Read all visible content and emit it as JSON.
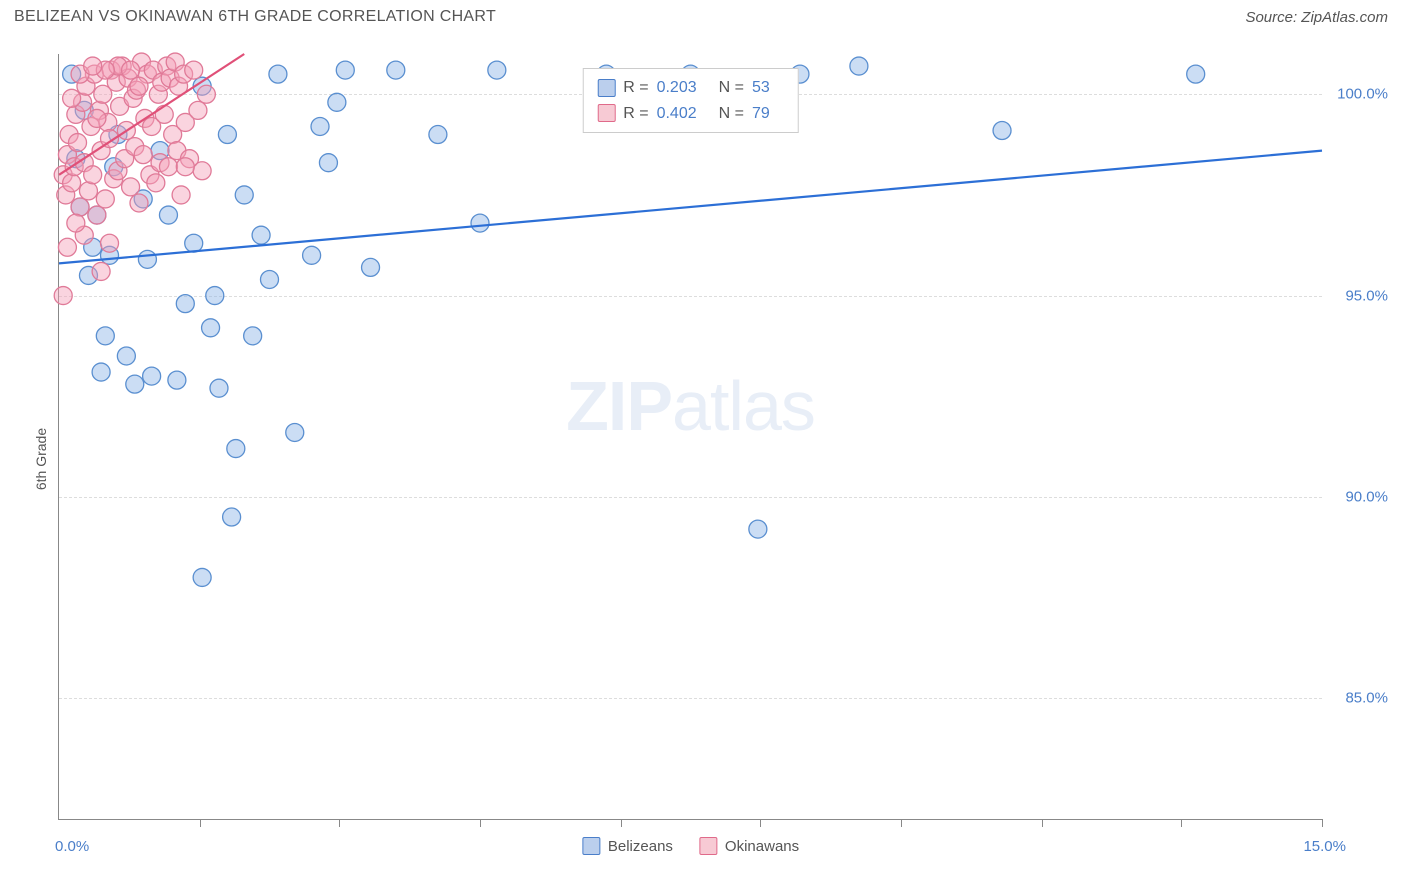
{
  "title": "BELIZEAN VS OKINAWAN 6TH GRADE CORRELATION CHART",
  "source": "Source: ZipAtlas.com",
  "ylabel": "6th Grade",
  "watermark_bold": "ZIP",
  "watermark_light": "atlas",
  "chart": {
    "type": "scatter",
    "xlim": [
      0,
      15
    ],
    "ylim": [
      82,
      101
    ],
    "x_axis_labels": [
      {
        "pos": 0,
        "text": "0.0%"
      },
      {
        "pos": 15,
        "text": "15.0%"
      }
    ],
    "x_ticks": [
      1.67,
      3.33,
      5.0,
      6.67,
      8.33,
      10.0,
      11.67,
      13.33,
      15.0
    ],
    "y_gridlines": [
      85,
      90,
      95,
      100
    ],
    "y_tick_labels": [
      "85.0%",
      "90.0%",
      "95.0%",
      "100.0%"
    ],
    "background_color": "#ffffff",
    "grid_color": "#dddddd",
    "series": [
      {
        "name": "Belizeans",
        "color_fill": "rgba(140,180,230,0.45)",
        "color_stroke": "#5a8fd0",
        "marker_radius": 9,
        "R": "0.203",
        "N": "53",
        "trend_line": {
          "x1": 0,
          "y1": 95.8,
          "x2": 15,
          "y2": 98.6,
          "color": "#2c6fd6",
          "width": 2.2
        },
        "points": [
          [
            0.15,
            100.5
          ],
          [
            0.2,
            98.4
          ],
          [
            0.25,
            97.2
          ],
          [
            0.3,
            99.6
          ],
          [
            0.35,
            95.5
          ],
          [
            0.4,
            96.2
          ],
          [
            0.45,
            97.0
          ],
          [
            0.5,
            93.1
          ],
          [
            0.55,
            94.0
          ],
          [
            0.6,
            96.0
          ],
          [
            0.65,
            98.2
          ],
          [
            0.7,
            99.0
          ],
          [
            0.8,
            93.5
          ],
          [
            0.9,
            92.8
          ],
          [
            1.0,
            97.4
          ],
          [
            1.05,
            95.9
          ],
          [
            1.1,
            93.0
          ],
          [
            1.2,
            98.6
          ],
          [
            1.3,
            97.0
          ],
          [
            1.4,
            92.9
          ],
          [
            1.5,
            94.8
          ],
          [
            1.6,
            96.3
          ],
          [
            1.7,
            100.2
          ],
          [
            1.8,
            94.2
          ],
          [
            1.85,
            95.0
          ],
          [
            1.9,
            92.7
          ],
          [
            2.0,
            99.0
          ],
          [
            2.05,
            89.5
          ],
          [
            2.1,
            91.2
          ],
          [
            2.2,
            97.5
          ],
          [
            2.3,
            94.0
          ],
          [
            2.4,
            96.5
          ],
          [
            2.5,
            95.4
          ],
          [
            2.6,
            100.5
          ],
          [
            2.8,
            91.6
          ],
          [
            3.0,
            96.0
          ],
          [
            3.1,
            99.2
          ],
          [
            3.2,
            98.3
          ],
          [
            3.3,
            99.8
          ],
          [
            3.4,
            100.6
          ],
          [
            3.7,
            95.7
          ],
          [
            4.0,
            100.6
          ],
          [
            4.5,
            99.0
          ],
          [
            1.7,
            88.0
          ],
          [
            8.3,
            89.2
          ],
          [
            5.2,
            100.6
          ],
          [
            5.0,
            96.8
          ],
          [
            6.5,
            100.5
          ],
          [
            7.5,
            100.5
          ],
          [
            8.8,
            100.5
          ],
          [
            9.5,
            100.7
          ],
          [
            11.2,
            99.1
          ],
          [
            13.5,
            100.5
          ]
        ]
      },
      {
        "name": "Okinawans",
        "color_fill": "rgba(245,160,185,0.45)",
        "color_stroke": "#e07a98",
        "marker_radius": 9,
        "R": "0.402",
        "N": "79",
        "trend_line": {
          "x1": 0,
          "y1": 98.0,
          "x2": 2.2,
          "y2": 101.0,
          "color": "#e05078",
          "width": 2.2
        },
        "points": [
          [
            0.05,
            98.0
          ],
          [
            0.08,
            97.5
          ],
          [
            0.1,
            98.5
          ],
          [
            0.12,
            99.0
          ],
          [
            0.15,
            97.8
          ],
          [
            0.18,
            98.2
          ],
          [
            0.2,
            99.5
          ],
          [
            0.22,
            98.8
          ],
          [
            0.25,
            97.2
          ],
          [
            0.28,
            99.8
          ],
          [
            0.3,
            98.3
          ],
          [
            0.32,
            100.2
          ],
          [
            0.35,
            97.6
          ],
          [
            0.38,
            99.2
          ],
          [
            0.4,
            98.0
          ],
          [
            0.42,
            100.5
          ],
          [
            0.45,
            97.0
          ],
          [
            0.48,
            99.6
          ],
          [
            0.5,
            98.6
          ],
          [
            0.52,
            100.0
          ],
          [
            0.55,
            97.4
          ],
          [
            0.58,
            99.3
          ],
          [
            0.6,
            98.9
          ],
          [
            0.62,
            100.6
          ],
          [
            0.65,
            97.9
          ],
          [
            0.68,
            100.3
          ],
          [
            0.7,
            98.1
          ],
          [
            0.72,
            99.7
          ],
          [
            0.75,
            100.7
          ],
          [
            0.78,
            98.4
          ],
          [
            0.8,
            99.1
          ],
          [
            0.82,
            100.4
          ],
          [
            0.85,
            97.7
          ],
          [
            0.88,
            99.9
          ],
          [
            0.9,
            98.7
          ],
          [
            0.92,
            100.1
          ],
          [
            0.95,
            97.3
          ],
          [
            0.98,
            100.8
          ],
          [
            1.0,
            98.5
          ],
          [
            1.02,
            99.4
          ],
          [
            1.05,
            100.5
          ],
          [
            1.08,
            98.0
          ],
          [
            1.1,
            99.2
          ],
          [
            1.12,
            100.6
          ],
          [
            1.15,
            97.8
          ],
          [
            1.18,
            100.0
          ],
          [
            1.2,
            98.3
          ],
          [
            1.22,
            100.3
          ],
          [
            1.25,
            99.5
          ],
          [
            1.28,
            100.7
          ],
          [
            1.3,
            98.2
          ],
          [
            1.32,
            100.4
          ],
          [
            1.35,
            99.0
          ],
          [
            1.38,
            100.8
          ],
          [
            1.4,
            98.6
          ],
          [
            1.42,
            100.2
          ],
          [
            1.45,
            97.5
          ],
          [
            1.48,
            100.5
          ],
          [
            1.5,
            99.3
          ],
          [
            1.55,
            98.4
          ],
          [
            1.6,
            100.6
          ],
          [
            1.65,
            99.6
          ],
          [
            1.7,
            98.1
          ],
          [
            1.75,
            100.0
          ],
          [
            0.1,
            96.2
          ],
          [
            0.15,
            99.9
          ],
          [
            0.3,
            96.5
          ],
          [
            0.5,
            95.6
          ],
          [
            0.05,
            95.0
          ],
          [
            0.7,
            100.7
          ],
          [
            0.85,
            100.6
          ],
          [
            1.5,
            98.2
          ],
          [
            0.45,
            99.4
          ],
          [
            0.25,
            100.5
          ],
          [
            0.55,
            100.6
          ],
          [
            0.95,
            100.2
          ],
          [
            0.2,
            96.8
          ],
          [
            0.4,
            100.7
          ],
          [
            0.6,
            96.3
          ]
        ]
      }
    ]
  },
  "legend_stats": {
    "rows": [
      {
        "swatch": "blue",
        "r_label": "R =",
        "r_val": "0.203",
        "n_label": "N =",
        "n_val": "53"
      },
      {
        "swatch": "pink",
        "r_label": "R =",
        "r_val": "0.402",
        "n_label": "N =",
        "n_val": "79"
      }
    ]
  },
  "bottom_legend": {
    "items": [
      {
        "swatch": "blue",
        "label": "Belizeans"
      },
      {
        "swatch": "pink",
        "label": "Okinawans"
      }
    ]
  }
}
